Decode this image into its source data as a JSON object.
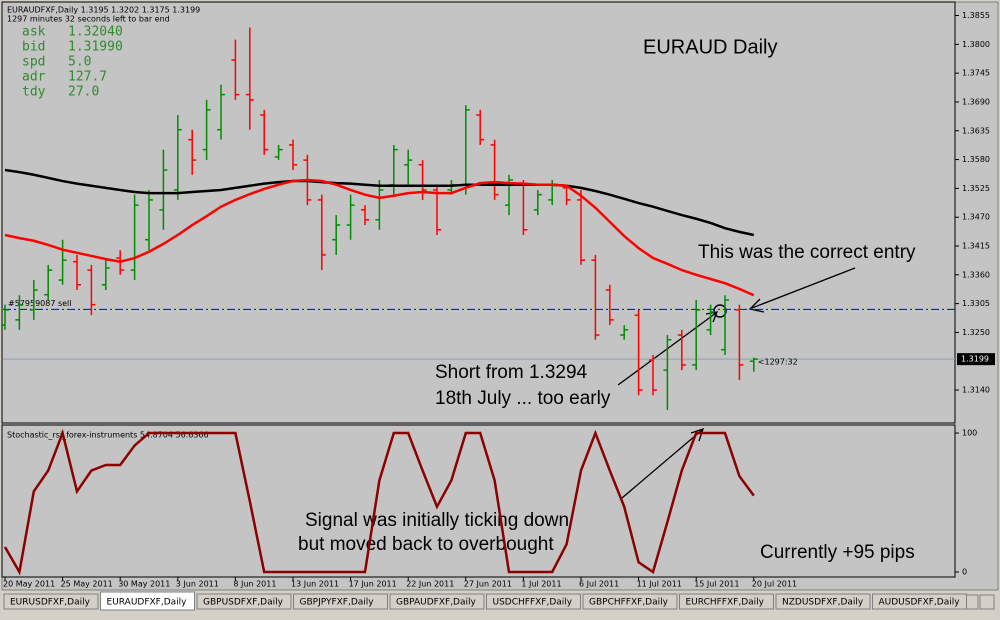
{
  "header": {
    "symbol_line": "EURAUDFXF,Daily  1.3195 1.3202 1.3175 1.3199",
    "timer": "1297 minutes 32 seconds left to bar end",
    "stats": [
      [
        "ask",
        "1.32040"
      ],
      [
        "bid",
        "1.31990"
      ],
      [
        "spd",
        "5.0"
      ],
      [
        "adr",
        "127.7"
      ],
      [
        "tdy",
        "27.0"
      ]
    ]
  },
  "tabs": [
    "EURUSDFXF,Daily",
    "EURAUDFXF,Daily",
    "GBPUSDFXF,Daily",
    "GBPJPYFXF,Daily",
    "GBPAUDFXF,Daily",
    "USDCHFFXF,Daily",
    "GBPCHFFXF,Daily",
    "EURCHFFXF,Daily",
    "NZDUSDFXF,Daily",
    "AUDUSDFXF,Daily"
  ],
  "active_tab": 1,
  "chart_data": [
    {
      "type": "ohlc",
      "title": "EURAUD  Daily",
      "categories": [
        "20 May 2011",
        null,
        null,
        null,
        "25 May 2011",
        null,
        null,
        null,
        "30 May 2011",
        null,
        null,
        null,
        "3 Jun 2011",
        null,
        null,
        null,
        "8 Jun 2011",
        null,
        null,
        null,
        "13 Jun 2011",
        null,
        null,
        null,
        "17 Jun 2011",
        null,
        null,
        null,
        "22 Jun 2011",
        null,
        null,
        null,
        "27 Jun 2011",
        null,
        null,
        null,
        "1 Jul 2011",
        null,
        null,
        null,
        "6 Jul 2011",
        null,
        null,
        null,
        "11 Jul 2011",
        null,
        null,
        null,
        "15 Jul 2011",
        null,
        null,
        null,
        "20 Jul 2011"
      ],
      "open": [
        1.3264,
        1.3274,
        1.3293,
        1.3322,
        1.335,
        1.3385,
        1.3369,
        1.3341,
        1.3392,
        1.3369,
        1.3427,
        1.3484,
        1.3522,
        1.3618,
        1.3599,
        1.3637,
        1.377,
        1.3704,
        1.3665,
        1.3585,
        1.3608,
        1.3579,
        1.3503,
        1.3427,
        1.3455,
        1.3484,
        1.3465,
        1.3532,
        1.357,
        1.357,
        1.3522,
        1.3522,
        1.3532,
        1.3665,
        1.3608,
        1.3493,
        1.3532,
        1.3484,
        1.3503,
        1.3526,
        1.3503,
        1.3388,
        1.3331,
        1.3245,
        1.3283,
        1.3197,
        1.3178,
        1.3245,
        1.3188,
        1.3255,
        1.3217,
        1.3293,
        1.3195
      ],
      "high": [
        1.3303,
        1.3321,
        1.335,
        1.3379,
        1.3427,
        1.3398,
        1.3379,
        1.3388,
        1.3407,
        1.3513,
        1.3522,
        1.3599,
        1.3665,
        1.3637,
        1.3694,
        1.3723,
        1.3809,
        1.3832,
        1.3675,
        1.3608,
        1.3618,
        1.3589,
        1.3513,
        1.3474,
        1.3513,
        1.3493,
        1.3541,
        1.3608,
        1.3599,
        1.3579,
        1.3532,
        1.3541,
        1.3684,
        1.3675,
        1.3618,
        1.3551,
        1.3541,
        1.3522,
        1.3541,
        1.3532,
        1.3522,
        1.3398,
        1.3341,
        1.3264,
        1.3293,
        1.3207,
        1.3245,
        1.3255,
        1.3312,
        1.3303,
        1.3321,
        1.3303,
        1.3202
      ],
      "low": [
        1.3255,
        1.3255,
        1.3274,
        1.3312,
        1.3341,
        1.3331,
        1.3283,
        1.3331,
        1.336,
        1.335,
        1.3407,
        1.3446,
        1.3503,
        1.3551,
        1.3579,
        1.3618,
        1.3694,
        1.3637,
        1.3589,
        1.3579,
        1.356,
        1.3493,
        1.3369,
        1.3398,
        1.3427,
        1.3455,
        1.3446,
        1.3513,
        1.3532,
        1.3503,
        1.3436,
        1.3513,
        1.3513,
        1.3608,
        1.3503,
        1.3474,
        1.3436,
        1.3474,
        1.3493,
        1.3493,
        1.3379,
        1.3236,
        1.3264,
        1.3236,
        1.313,
        1.313,
        1.3102,
        1.3178,
        1.3178,
        1.3245,
        1.3207,
        1.3159,
        1.3175
      ],
      "close": [
        1.3293,
        1.3303,
        1.3331,
        1.3369,
        1.3388,
        1.3341,
        1.3303,
        1.3373,
        1.3369,
        1.3493,
        1.3503,
        1.356,
        1.3637,
        1.3579,
        1.3675,
        1.3704,
        1.3704,
        1.3694,
        1.3599,
        1.3599,
        1.357,
        1.3503,
        1.3398,
        1.3455,
        1.3493,
        1.3465,
        1.3522,
        1.3599,
        1.3579,
        1.3522,
        1.3446,
        1.3532,
        1.3675,
        1.3618,
        1.3513,
        1.3541,
        1.3446,
        1.3513,
        1.3532,
        1.3503,
        1.3388,
        1.3245,
        1.3274,
        1.3255,
        1.314,
        1.314,
        1.3236,
        1.3188,
        1.3293,
        1.3289,
        1.3312,
        1.3188,
        1.3199
      ],
      "up_color": "#008c00",
      "down_color": "#ff0000",
      "overlays": [
        {
          "color": "#000000",
          "values": [
            1.356,
            1.3556,
            1.3551,
            1.3545,
            1.3539,
            1.3534,
            1.353,
            1.3526,
            1.3522,
            1.3518,
            1.3516,
            1.3516,
            1.3516,
            1.3518,
            1.352,
            1.3522,
            1.3526,
            1.353,
            1.3534,
            1.3537,
            1.3539,
            1.3539,
            1.3537,
            1.3535,
            1.3534,
            1.3532,
            1.353,
            1.353,
            1.353,
            1.353,
            1.353,
            1.353,
            1.3532,
            1.3532,
            1.3532,
            1.3532,
            1.3532,
            1.3532,
            1.3532,
            1.353,
            1.3526,
            1.352,
            1.3513,
            1.3505,
            1.3497,
            1.349,
            1.3482,
            1.3474,
            1.3467,
            1.3459,
            1.3449,
            1.3442,
            1.3436
          ]
        },
        {
          "color": "#ff0000",
          "values": [
            1.3436,
            1.343,
            1.3425,
            1.3417,
            1.3408,
            1.3402,
            1.3396,
            1.339,
            1.3385,
            1.3392,
            1.3404,
            1.3419,
            1.3436,
            1.3455,
            1.3472,
            1.349,
            1.3503,
            1.3514,
            1.3524,
            1.3532,
            1.3539,
            1.3541,
            1.3539,
            1.3532,
            1.3522,
            1.3513,
            1.3507,
            1.3511,
            1.3516,
            1.3518,
            1.3516,
            1.3516,
            1.3526,
            1.3535,
            1.3537,
            1.3535,
            1.3534,
            1.3532,
            1.3532,
            1.353,
            1.3511,
            1.3488,
            1.3461,
            1.3434,
            1.3411,
            1.3392,
            1.3381,
            1.3369,
            1.336,
            1.3352,
            1.3344,
            1.3333,
            1.3321
          ]
        }
      ],
      "order_line": {
        "label": "#57959087 sell",
        "value": 1.3294,
        "color": "#0000ff"
      },
      "bid_line": {
        "label": "1.3199",
        "value": 1.3199,
        "color": "#8fa0b8"
      },
      "countdown": "<1297:32",
      "ylim": [
        1.3079,
        1.3877
      ],
      "yticks": [
        1.3855,
        {
          "value": 1.38,
          "label": "1.3800"
        },
        1.3745,
        {
          "value": 1.369,
          "label": "1.3690"
        },
        1.3635,
        {
          "value": 1.358,
          "label": "1.3580"
        },
        1.3525,
        {
          "value": 1.347,
          "label": "1.3470"
        },
        1.3415,
        {
          "value": 1.336,
          "label": "1.3360"
        },
        1.3305,
        {
          "value": 1.325,
          "label": "1.3250"
        },
        {
          "value": 1.314,
          "label": "1.3140"
        }
      ],
      "annotations": [
        "This was the correct entry",
        "Short from 1.3294",
        "18th July ... too early",
        "Signal was initially ticking down",
        "but moved back to overbought",
        "Currently +95 pips"
      ]
    },
    {
      "type": "line",
      "title": "Stochastic_rsi_forex-instruments 54.8704 56.6366",
      "color": "#8b0000",
      "values": [
        18,
        0,
        58,
        73,
        100,
        58,
        73,
        77,
        77,
        91,
        100,
        100,
        100,
        100,
        100,
        100,
        100,
        51,
        0,
        0,
        0,
        0,
        0,
        0,
        0,
        0,
        66,
        100,
        100,
        73,
        47,
        66,
        100,
        100,
        66,
        0,
        0,
        0,
        0,
        20,
        73,
        100,
        73,
        47,
        7,
        0,
        36,
        73,
        100,
        100,
        100,
        69,
        55
      ],
      "ylim": [
        -3.6,
        105.8
      ],
      "yticks": [
        0,
        100
      ]
    }
  ]
}
